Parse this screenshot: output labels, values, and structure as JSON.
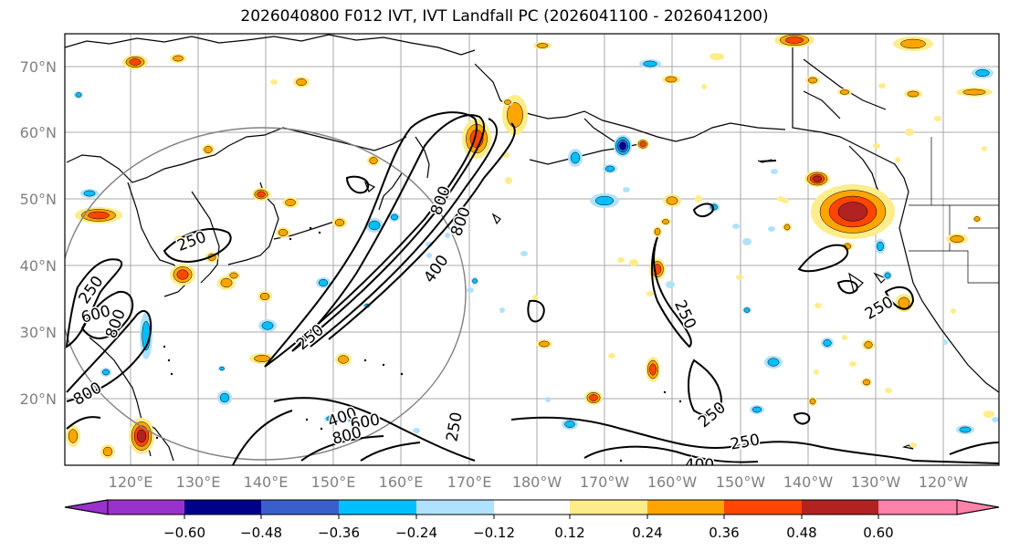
{
  "title": "2026040800 F012 IVT, IVT Landfall PC (2026041100 - 2026041200)",
  "map": {
    "lat_labels": [
      "70°N",
      "60°N",
      "50°N",
      "40°N",
      "30°N",
      "20°N"
    ],
    "lon_labels": [
      "120°E",
      "130°E",
      "140°E",
      "150°E",
      "160°E",
      "170°E",
      "180°W",
      "170°W",
      "160°W",
      "150°W",
      "140°W",
      "130°W",
      "120°W"
    ],
    "contour_labels": [
      "250",
      "250",
      "250",
      "250",
      "250",
      "250",
      "250",
      "250",
      "400",
      "400",
      "400",
      "600",
      "600",
      "800",
      "800",
      "800",
      "800",
      "800"
    ]
  },
  "colorbar": {
    "tick_labels": [
      "−0.60",
      "−0.48",
      "−0.36",
      "−0.24",
      "−0.12",
      "0.12",
      "0.24",
      "0.36",
      "0.48",
      "0.60"
    ],
    "colors": [
      "#9932cc",
      "#00008b",
      "#3a5fcd",
      "#00bfff",
      "#b0e2ff",
      "#ffffff",
      "#ffec8b",
      "#ffa500",
      "#ff4500",
      "#b22222",
      "#ff82ab"
    ]
  }
}
